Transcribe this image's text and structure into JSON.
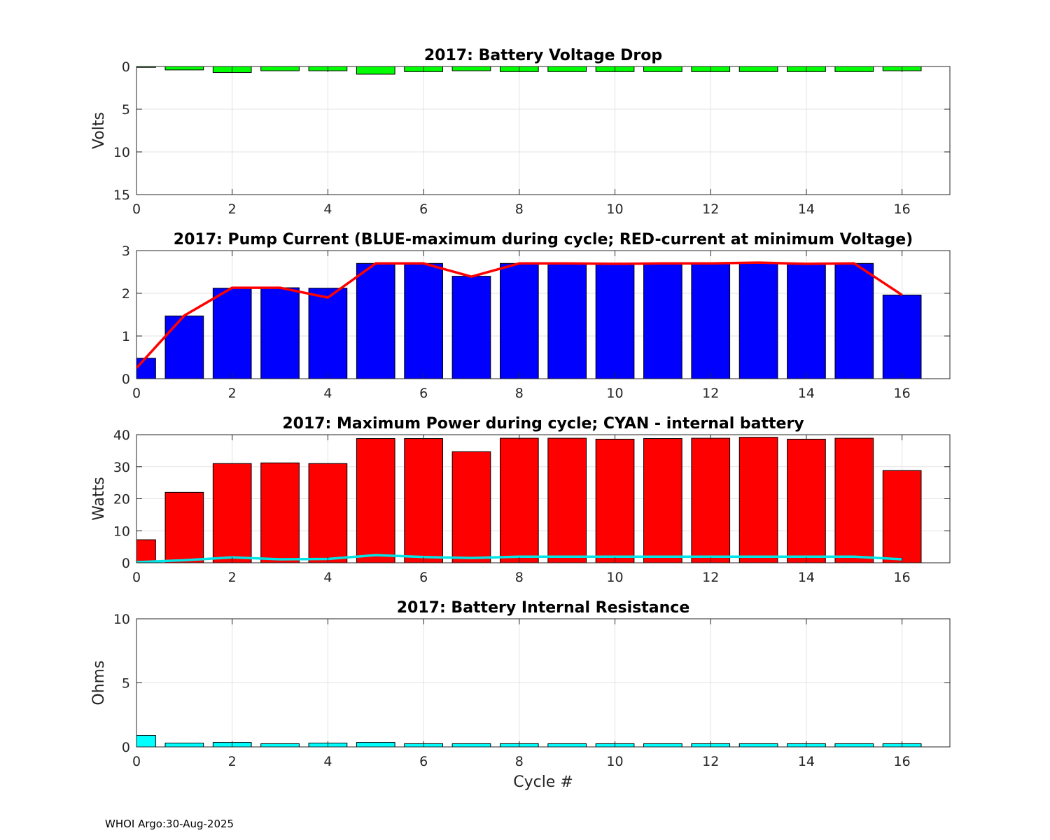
{
  "footer": "WHOI Argo:30-Aug-2025",
  "chart_data": [
    {
      "type": "bar",
      "title": "2017: Battery Voltage Drop",
      "xlabel": "",
      "ylabel": "Volts",
      "xlim": [
        0,
        17
      ],
      "ylim": [
        0,
        15
      ],
      "y_reversed": true,
      "xticks": [
        0,
        2,
        4,
        6,
        8,
        10,
        12,
        14,
        16
      ],
      "yticks": [
        0,
        5,
        10,
        15
      ],
      "grid": true,
      "x": [
        0,
        1,
        2,
        3,
        4,
        5,
        6,
        7,
        8,
        9,
        10,
        11,
        12,
        13,
        14,
        15,
        16
      ],
      "series": [
        {
          "name": "Voltage drop",
          "kind": "bar",
          "color": "#00ff00",
          "values": [
            0.1,
            0.4,
            0.7,
            0.5,
            0.5,
            0.9,
            0.6,
            0.5,
            0.6,
            0.6,
            0.6,
            0.6,
            0.6,
            0.6,
            0.6,
            0.6,
            0.5
          ]
        }
      ]
    },
    {
      "type": "bar",
      "title": "2017: Pump Current (BLUE-maximum during cycle; RED-current at minimum Voltage)",
      "xlabel": "",
      "ylabel": "",
      "xlim": [
        0,
        17
      ],
      "ylim": [
        0,
        3
      ],
      "xticks": [
        0,
        2,
        4,
        6,
        8,
        10,
        12,
        14,
        16
      ],
      "yticks": [
        0,
        1,
        2,
        3
      ],
      "grid": true,
      "x": [
        0,
        1,
        2,
        3,
        4,
        5,
        6,
        7,
        8,
        9,
        10,
        11,
        12,
        13,
        14,
        15,
        16
      ],
      "series": [
        {
          "name": "Maximum during cycle",
          "kind": "bar",
          "color": "#0000ff",
          "values": [
            0.48,
            1.47,
            2.12,
            2.13,
            2.12,
            2.7,
            2.7,
            2.4,
            2.7,
            2.7,
            2.68,
            2.7,
            2.7,
            2.72,
            2.68,
            2.7,
            1.96
          ]
        },
        {
          "name": "Current at minimum Voltage",
          "kind": "line",
          "color": "#ff0000",
          "values": [
            0.25,
            1.48,
            2.13,
            2.13,
            1.9,
            2.7,
            2.7,
            2.39,
            2.7,
            2.7,
            2.69,
            2.7,
            2.7,
            2.72,
            2.69,
            2.7,
            1.96
          ]
        }
      ]
    },
    {
      "type": "bar",
      "title": "2017: Maximum Power during cycle; CYAN - internal battery",
      "xlabel": "",
      "ylabel": "Watts",
      "xlim": [
        0,
        17
      ],
      "ylim": [
        0,
        40
      ],
      "xticks": [
        0,
        2,
        4,
        6,
        8,
        10,
        12,
        14,
        16
      ],
      "yticks": [
        0,
        10,
        20,
        30,
        40
      ],
      "grid": true,
      "x": [
        0,
        1,
        2,
        3,
        4,
        5,
        6,
        7,
        8,
        9,
        10,
        11,
        12,
        13,
        14,
        15,
        16
      ],
      "series": [
        {
          "name": "Maximum Power",
          "kind": "bar",
          "color": "#ff0000",
          "values": [
            7.2,
            22,
            31,
            31.2,
            31,
            38.8,
            38.8,
            34.7,
            38.9,
            38.9,
            38.6,
            38.8,
            38.9,
            39.2,
            38.6,
            38.9,
            28.8
          ]
        },
        {
          "name": "internal battery",
          "kind": "line",
          "color": "#00e5e5",
          "values": [
            0.2,
            0.8,
            1.7,
            1.1,
            1.2,
            2.4,
            1.8,
            1.5,
            1.9,
            1.9,
            1.9,
            1.9,
            1.9,
            1.9,
            1.9,
            1.9,
            1.1
          ]
        }
      ]
    },
    {
      "type": "bar",
      "title": "2017: Battery Internal Resistance",
      "xlabel": "Cycle #",
      "ylabel": "Ohms",
      "xlim": [
        0,
        17
      ],
      "ylim": [
        0,
        10
      ],
      "xticks": [
        0,
        2,
        4,
        6,
        8,
        10,
        12,
        14,
        16
      ],
      "yticks": [
        0,
        5,
        10
      ],
      "grid": true,
      "x": [
        0,
        1,
        2,
        3,
        4,
        5,
        6,
        7,
        8,
        9,
        10,
        11,
        12,
        13,
        14,
        15,
        16
      ],
      "series": [
        {
          "name": "Internal Resistance",
          "kind": "bar",
          "color": "#00ffff",
          "values": [
            0.9,
            0.3,
            0.35,
            0.25,
            0.3,
            0.35,
            0.25,
            0.25,
            0.25,
            0.25,
            0.25,
            0.25,
            0.25,
            0.25,
            0.25,
            0.25,
            0.25
          ]
        }
      ]
    }
  ]
}
